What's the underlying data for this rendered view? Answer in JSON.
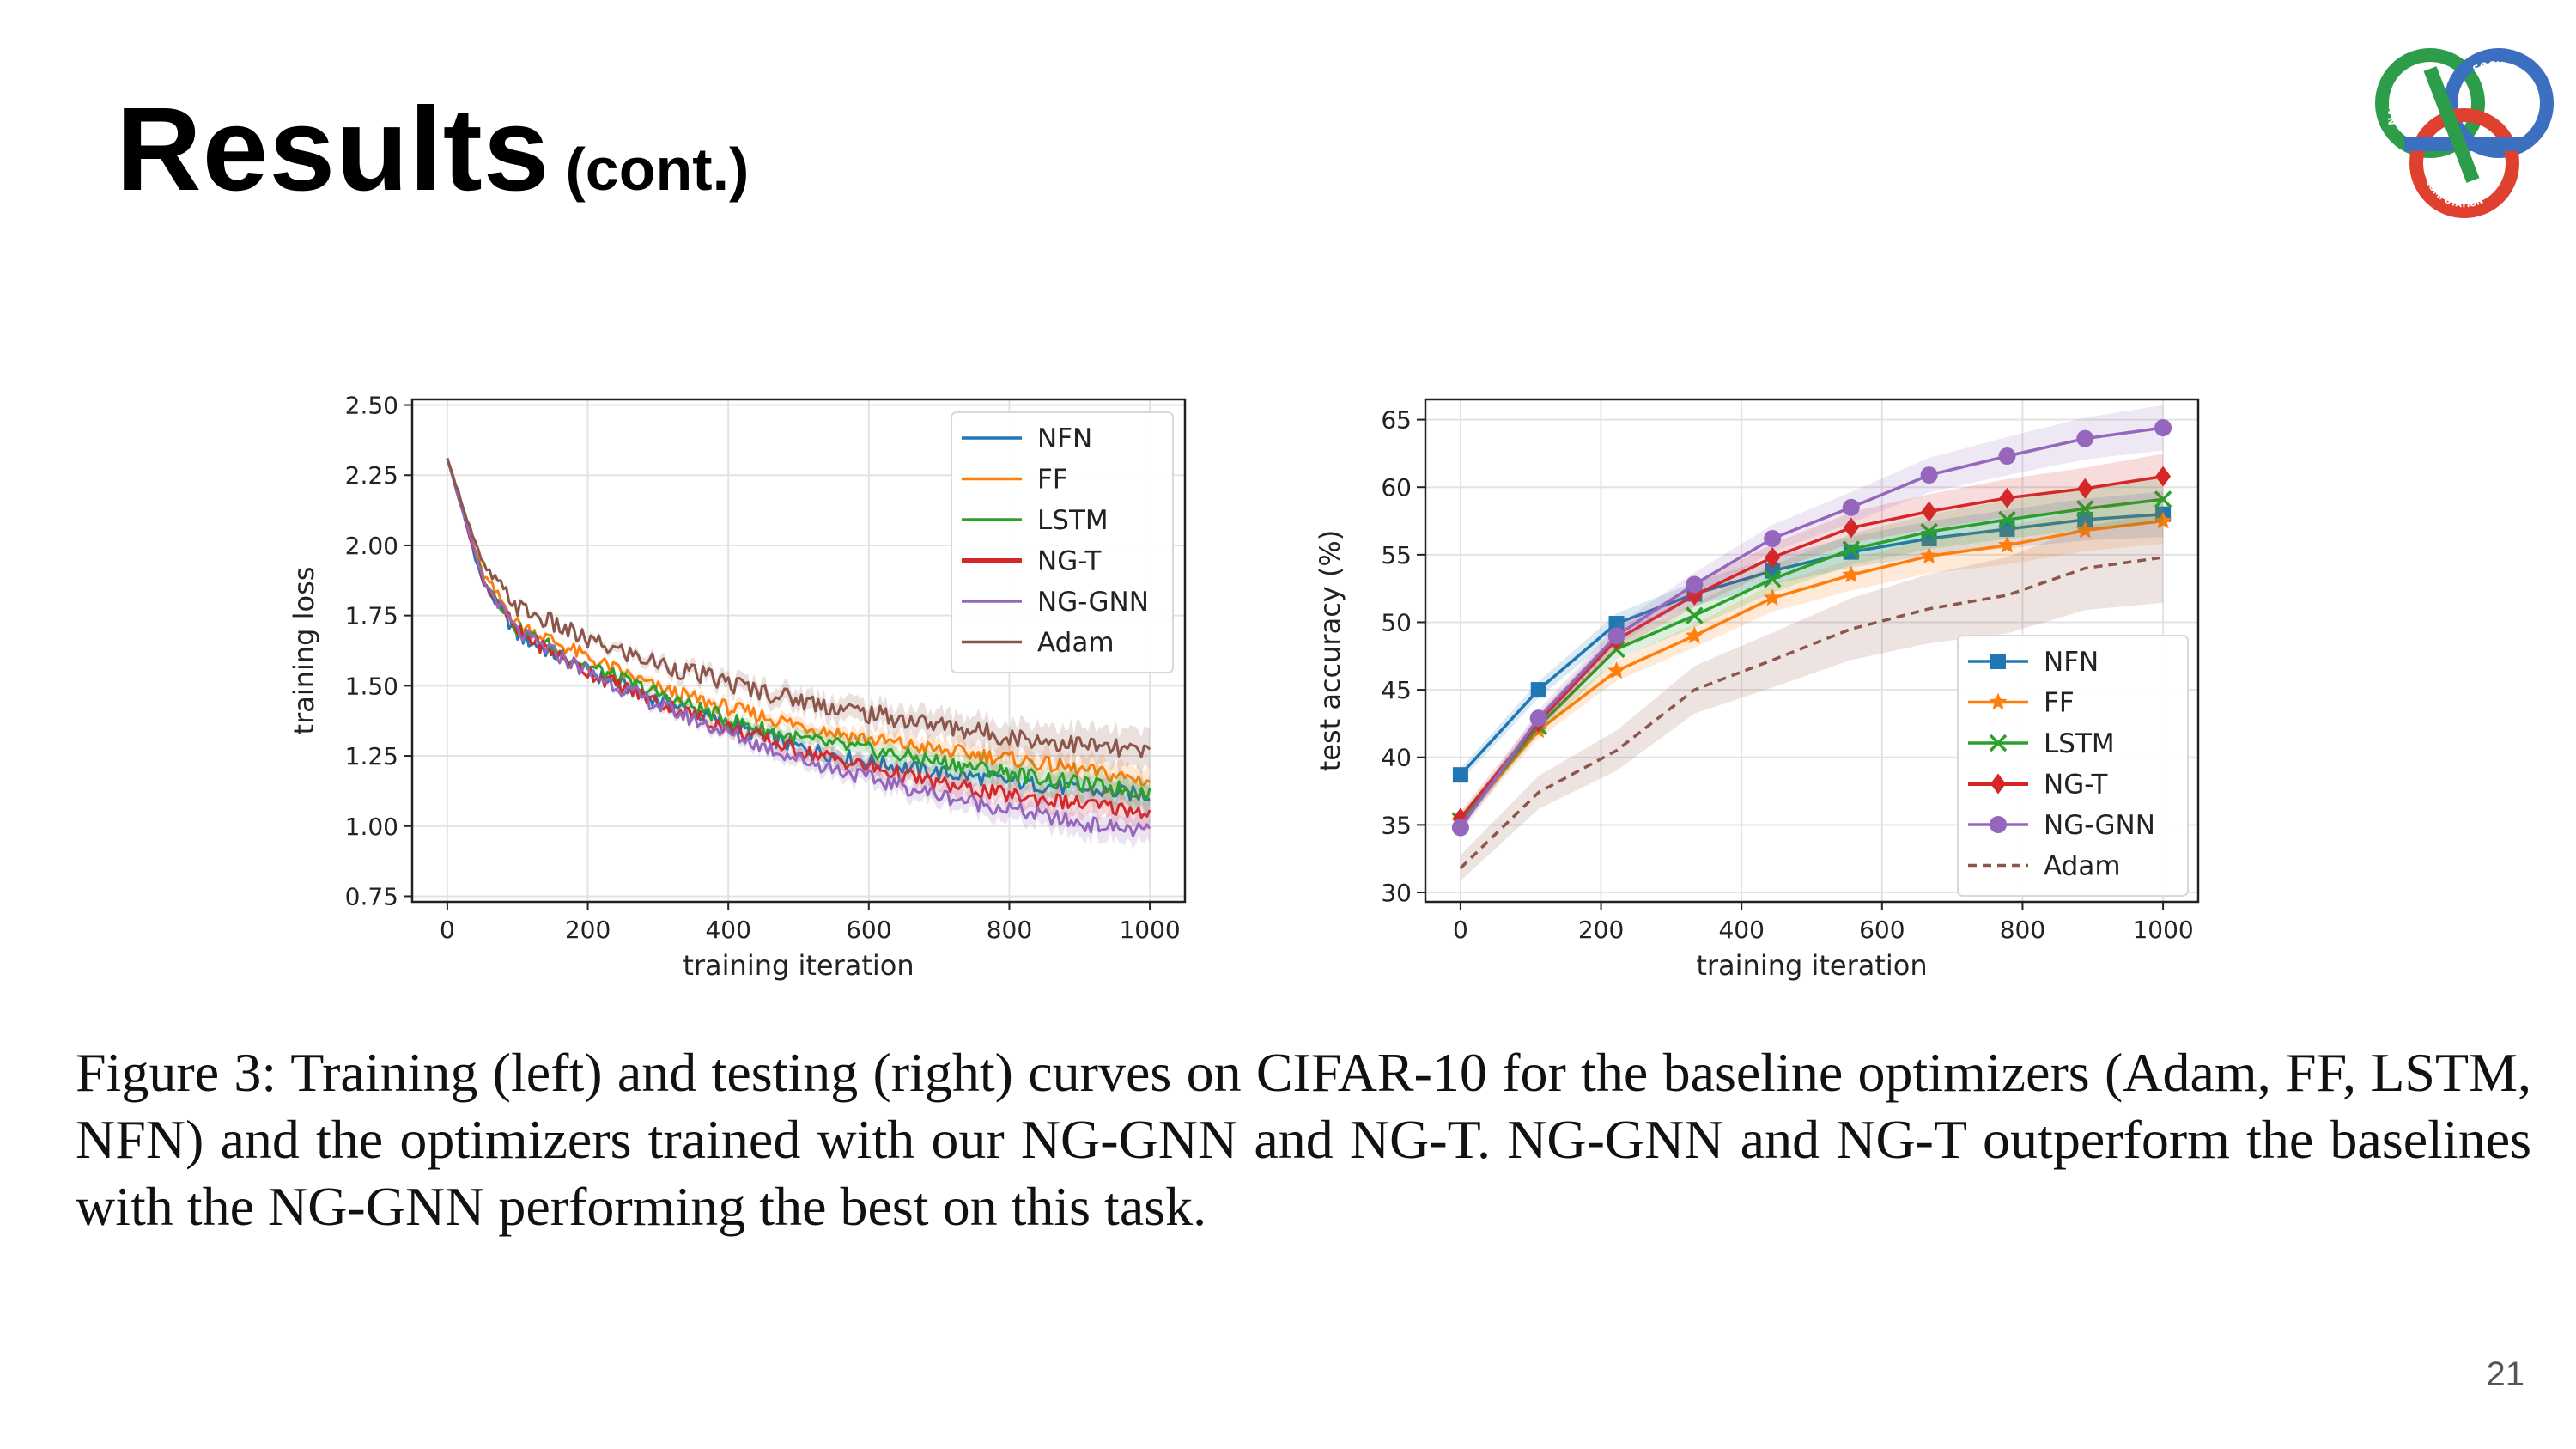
{
  "slide": {
    "title": "Results",
    "subtitle": "(cont.)",
    "caption": "Figure 3: Training (left) and testing (right) curves on CIFAR-10 for the baseline optimizers (Adam, FF, LSTM, NFN) and the optimizers trained with our NG-GNN and NG-T. NG-GNN and NG-T outperform the baselines with the NG-GNN performing the best on this task.",
    "page_number": "21",
    "logo": {
      "icon": "nature-society-computation-trefoil-logo",
      "text_top_left": "NATURE",
      "text_top_right": "SOCIETY",
      "text_bottom": "COMPUTATION",
      "colors": [
        "#2e9d4a",
        "#3d6fc0",
        "#e0402f"
      ]
    }
  },
  "chart_data": [
    {
      "id": "train",
      "type": "line",
      "xlabel": "training iteration",
      "ylabel": "training loss",
      "xlim": [
        -50,
        1050
      ],
      "ylim": [
        0.73,
        2.52
      ],
      "xticks": [
        0,
        200,
        400,
        600,
        800,
        1000
      ],
      "yticks": [
        0.75,
        1.0,
        1.25,
        1.5,
        1.75,
        2.0,
        2.25,
        2.5
      ],
      "ytick_labels": [
        "0.75",
        "1.00",
        "1.25",
        "1.50",
        "1.75",
        "2.00",
        "2.25",
        "2.50"
      ],
      "grid": true,
      "legend": "top-right",
      "x": [
        0,
        50,
        100,
        200,
        300,
        400,
        500,
        600,
        700,
        800,
        900,
        1000
      ],
      "series": [
        {
          "name": "NFN",
          "color": "#1f77b4",
          "values": [
            2.31,
            1.87,
            1.68,
            1.55,
            1.45,
            1.36,
            1.28,
            1.23,
            1.19,
            1.16,
            1.13,
            1.11
          ]
        },
        {
          "name": "FF",
          "color": "#ff7f0e",
          "values": [
            2.31,
            1.9,
            1.72,
            1.6,
            1.49,
            1.42,
            1.36,
            1.31,
            1.27,
            1.24,
            1.2,
            1.16
          ]
        },
        {
          "name": "LSTM",
          "color": "#2ca02c",
          "values": [
            2.31,
            1.89,
            1.7,
            1.57,
            1.47,
            1.38,
            1.31,
            1.27,
            1.23,
            1.19,
            1.15,
            1.12
          ]
        },
        {
          "name": "NG-T",
          "color": "#d62728",
          "values": [
            2.31,
            1.88,
            1.69,
            1.55,
            1.44,
            1.35,
            1.27,
            1.21,
            1.15,
            1.11,
            1.08,
            1.05
          ]
        },
        {
          "name": "NG-GNN",
          "color": "#9467bd",
          "values": [
            2.31,
            1.88,
            1.69,
            1.55,
            1.43,
            1.33,
            1.24,
            1.17,
            1.11,
            1.06,
            1.01,
            0.98
          ]
        },
        {
          "name": "Adam",
          "color": "#8c564b",
          "values": [
            2.31,
            1.93,
            1.78,
            1.66,
            1.58,
            1.51,
            1.45,
            1.4,
            1.36,
            1.32,
            1.29,
            1.26
          ]
        }
      ]
    },
    {
      "id": "test",
      "type": "line",
      "xlabel": "training iteration",
      "ylabel": "test accuracy (%)",
      "xlim": [
        -50,
        1050
      ],
      "ylim": [
        29.3,
        66.5
      ],
      "xticks": [
        0,
        200,
        400,
        600,
        800,
        1000
      ],
      "yticks": [
        30,
        35,
        40,
        45,
        50,
        55,
        60,
        65
      ],
      "grid": true,
      "legend": "lower-right",
      "x": [
        0,
        111,
        222,
        333,
        444,
        556,
        667,
        778,
        889,
        1000
      ],
      "series": [
        {
          "name": "NFN",
          "color": "#1f77b4",
          "marker": "square",
          "values": [
            38.7,
            45.0,
            49.9,
            52.1,
            53.8,
            55.2,
            56.2,
            56.9,
            57.6,
            58.0
          ]
        },
        {
          "name": "FF",
          "color": "#ff7f0e",
          "marker": "star",
          "values": [
            35.2,
            42.0,
            46.4,
            49.0,
            51.8,
            53.5,
            54.9,
            55.7,
            56.8,
            57.5
          ]
        },
        {
          "name": "LSTM",
          "color": "#2ca02c",
          "marker": "x",
          "values": [
            35.3,
            42.3,
            48.0,
            50.5,
            53.2,
            55.4,
            56.7,
            57.6,
            58.4,
            59.1
          ]
        },
        {
          "name": "NG-T",
          "color": "#d62728",
          "marker": "diamond",
          "values": [
            35.5,
            42.6,
            48.7,
            52.0,
            54.8,
            57.0,
            58.2,
            59.2,
            59.9,
            60.8
          ]
        },
        {
          "name": "NG-GNN",
          "color": "#9467bd",
          "marker": "circle",
          "values": [
            34.8,
            42.9,
            49.0,
            52.8,
            56.2,
            58.5,
            60.9,
            62.3,
            63.6,
            64.4
          ]
        },
        {
          "name": "Adam",
          "color": "#8c564b",
          "marker": "none",
          "dashed": true,
          "values": [
            31.8,
            37.4,
            40.5,
            45.0,
            47.2,
            49.5,
            51.0,
            52.0,
            54.0,
            54.8
          ]
        }
      ]
    }
  ]
}
